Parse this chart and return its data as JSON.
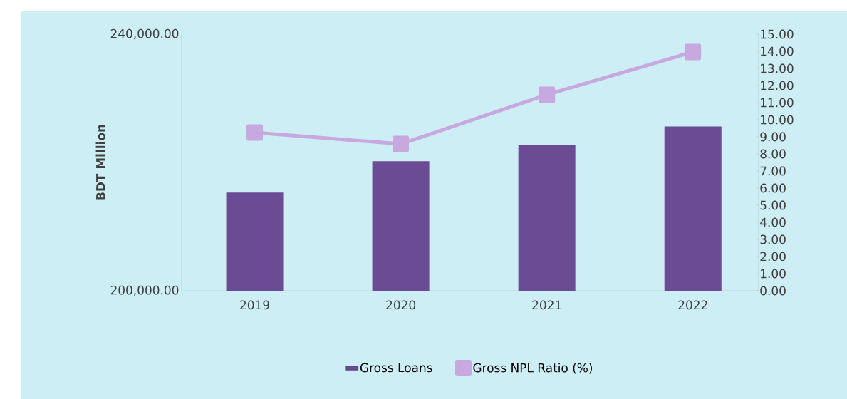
{
  "chart_data": {
    "type": "bar",
    "categories": [
      "2019",
      "2020",
      "2021",
      "2022"
    ],
    "series": [
      {
        "name": "Gross Loans",
        "color": "#6a4b94",
        "values": [
          215300,
          220200,
          222700,
          225600
        ]
      },
      {
        "name": "Gross NPL Ratio (%)",
        "type": "line",
        "axis": "y2",
        "color": "#c7a8df",
        "marker": "square",
        "values": [
          9.25,
          8.58,
          11.46,
          13.96
        ]
      }
    ],
    "ylabel": "BDT Million",
    "ylim": [
      200000,
      240000
    ],
    "yticks": [
      {
        "value": 200000,
        "label": "200,000.00"
      },
      {
        "value": 240000,
        "label": "240,000.00"
      }
    ],
    "y2lim": [
      0,
      15
    ],
    "y2ticks": [
      {
        "value": 0,
        "label": "0.00"
      },
      {
        "value": 1,
        "label": "1.00"
      },
      {
        "value": 2,
        "label": "2.00"
      },
      {
        "value": 3,
        "label": "3.00"
      },
      {
        "value": 4,
        "label": "4.00"
      },
      {
        "value": 5,
        "label": "5.00"
      },
      {
        "value": 6,
        "label": "6.00"
      },
      {
        "value": 7,
        "label": "7.00"
      },
      {
        "value": 8,
        "label": "8.00"
      },
      {
        "value": 9,
        "label": "9.00"
      },
      {
        "value": 10,
        "label": "10.00"
      },
      {
        "value": 11,
        "label": "11.00"
      },
      {
        "value": 12,
        "label": "12.00"
      },
      {
        "value": 13,
        "label": "13.00"
      },
      {
        "value": 14,
        "label": "14.00"
      },
      {
        "value": 15,
        "label": "15.00"
      }
    ],
    "legend": "bottom"
  }
}
